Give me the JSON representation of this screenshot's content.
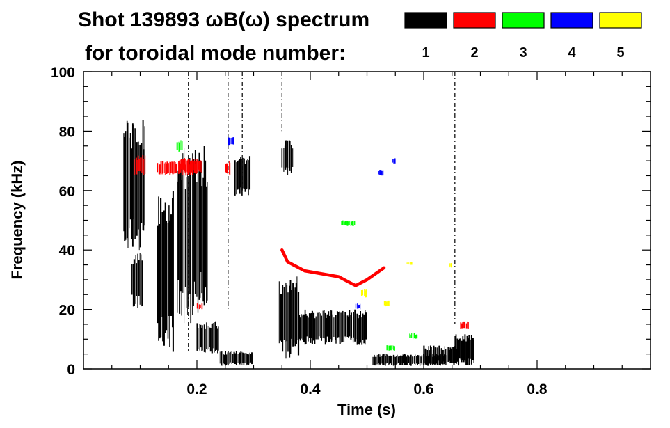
{
  "chart_data": {
    "type": "heatmap",
    "title_line1": "Shot 139893 ωB(ω) spectrum",
    "title_line2": "for toroidal mode number:",
    "xlabel": "Time (s)",
    "ylabel": "Frequency (kHz)",
    "xlim": [
      0.0,
      1.0
    ],
    "ylim": [
      0,
      100
    ],
    "x_ticks": [
      0.2,
      0.4,
      0.6,
      0.8
    ],
    "x_tick_labels": [
      "0.2",
      "0.4",
      "0.6",
      "0.8"
    ],
    "y_ticks": [
      0,
      20,
      40,
      60,
      80,
      100
    ],
    "y_tick_labels": [
      "0",
      "20",
      "40",
      "60",
      "80",
      "100"
    ],
    "legend": {
      "placement": "top-right",
      "entries": [
        {
          "label": "1",
          "color": "#000000"
        },
        {
          "label": "2",
          "color": "#ff0000"
        },
        {
          "label": "3",
          "color": "#00ff00"
        },
        {
          "label": "4",
          "color": "#0000ff"
        },
        {
          "label": "5",
          "color": "#ffff00"
        }
      ]
    },
    "series": [
      {
        "mode": 1,
        "color": "#000000",
        "regions": [
          {
            "t": [
              0.07,
              0.11
            ],
            "f": [
              40,
              85
            ]
          },
          {
            "t": [
              0.085,
              0.105
            ],
            "f": [
              20,
              40
            ]
          },
          {
            "t": [
              0.13,
              0.16
            ],
            "f": [
              5,
              60
            ]
          },
          {
            "t": [
              0.165,
              0.205
            ],
            "f": [
              15,
              75
            ]
          },
          {
            "t": [
              0.205,
              0.22
            ],
            "f": [
              20,
              75
            ]
          },
          {
            "t": [
              0.2,
              0.24
            ],
            "f": [
              5,
              16
            ]
          },
          {
            "t": [
              0.24,
              0.3
            ],
            "f": [
              1,
              6
            ]
          },
          {
            "t": [
              0.265,
              0.295
            ],
            "f": [
              58,
              72
            ]
          },
          {
            "t": [
              0.345,
              0.38
            ],
            "f": [
              3,
              32
            ]
          },
          {
            "t": [
              0.38,
              0.5
            ],
            "f": [
              8,
              20
            ]
          },
          {
            "t": [
              0.35,
              0.37
            ],
            "f": [
              65,
              77
            ]
          },
          {
            "t": [
              0.51,
              0.64
            ],
            "f": [
              1,
              5
            ]
          },
          {
            "t": [
              0.655,
              0.69
            ],
            "f": [
              1,
              12
            ]
          },
          {
            "t": [
              0.6,
              0.66
            ],
            "f": [
              1,
              8
            ]
          }
        ],
        "lines": [
          {
            "t": 0.185,
            "f": [
              5,
              100
            ]
          },
          {
            "t": 0.255,
            "f": [
              20,
              100
            ]
          },
          {
            "t": 0.28,
            "f": [
              60,
              100
            ]
          },
          {
            "t": 0.35,
            "f": [
              80,
              100
            ]
          },
          {
            "t": 0.655,
            "f": [
              15,
              100
            ]
          }
        ]
      },
      {
        "mode": 2,
        "color": "#ff0000",
        "regions": [
          {
            "t": [
              0.09,
              0.11
            ],
            "f": [
              65,
              72
            ]
          },
          {
            "t": [
              0.13,
              0.2
            ],
            "f": [
              65,
              70
            ]
          },
          {
            "t": [
              0.17,
              0.21
            ],
            "f": [
              66,
              71
            ]
          },
          {
            "t": [
              0.25,
              0.26
            ],
            "f": [
              65,
              70
            ]
          },
          {
            "t": [
              0.2,
              0.21
            ],
            "f": [
              20,
              22
            ]
          },
          {
            "t": [
              0.665,
              0.68
            ],
            "f": [
              13,
              16
            ]
          }
        ],
        "curves": [
          {
            "points": [
              [
                0.35,
                40
              ],
              [
                0.36,
                36
              ],
              [
                0.37,
                35
              ],
              [
                0.39,
                33
              ],
              [
                0.42,
                32
              ],
              [
                0.45,
                31
              ],
              [
                0.47,
                29
              ],
              [
                0.48,
                28
              ],
              [
                0.5,
                30
              ],
              [
                0.53,
                34
              ]
            ]
          }
        ]
      },
      {
        "mode": 3,
        "color": "#00ff00",
        "regions": [
          {
            "t": [
              0.165,
              0.175
            ],
            "f": [
              73,
              77
            ]
          },
          {
            "t": [
              0.455,
              0.48
            ],
            "f": [
              48,
              50
            ]
          },
          {
            "t": [
              0.535,
              0.55
            ],
            "f": [
              6,
              8
            ]
          },
          {
            "t": [
              0.575,
              0.59
            ],
            "f": [
              10,
              12
            ]
          }
        ]
      },
      {
        "mode": 4,
        "color": "#0000ff",
        "regions": [
          {
            "t": [
              0.255,
              0.265
            ],
            "f": [
              75,
              78
            ]
          },
          {
            "t": [
              0.48,
              0.49
            ],
            "f": [
              20,
              22
            ]
          },
          {
            "t": [
              0.52,
              0.53
            ],
            "f": [
              65,
              67
            ]
          },
          {
            "t": [
              0.545,
              0.55
            ],
            "f": [
              69,
              71
            ]
          }
        ]
      },
      {
        "mode": 5,
        "color": "#ffff00",
        "regions": [
          {
            "t": [
              0.49,
              0.5
            ],
            "f": [
              24,
              27
            ]
          },
          {
            "t": [
              0.53,
              0.54
            ],
            "f": [
              21,
              23
            ]
          },
          {
            "t": [
              0.57,
              0.58
            ],
            "f": [
              35,
              36
            ]
          },
          {
            "t": [
              0.645,
              0.65
            ],
            "f": [
              34,
              36
            ]
          }
        ]
      }
    ]
  }
}
